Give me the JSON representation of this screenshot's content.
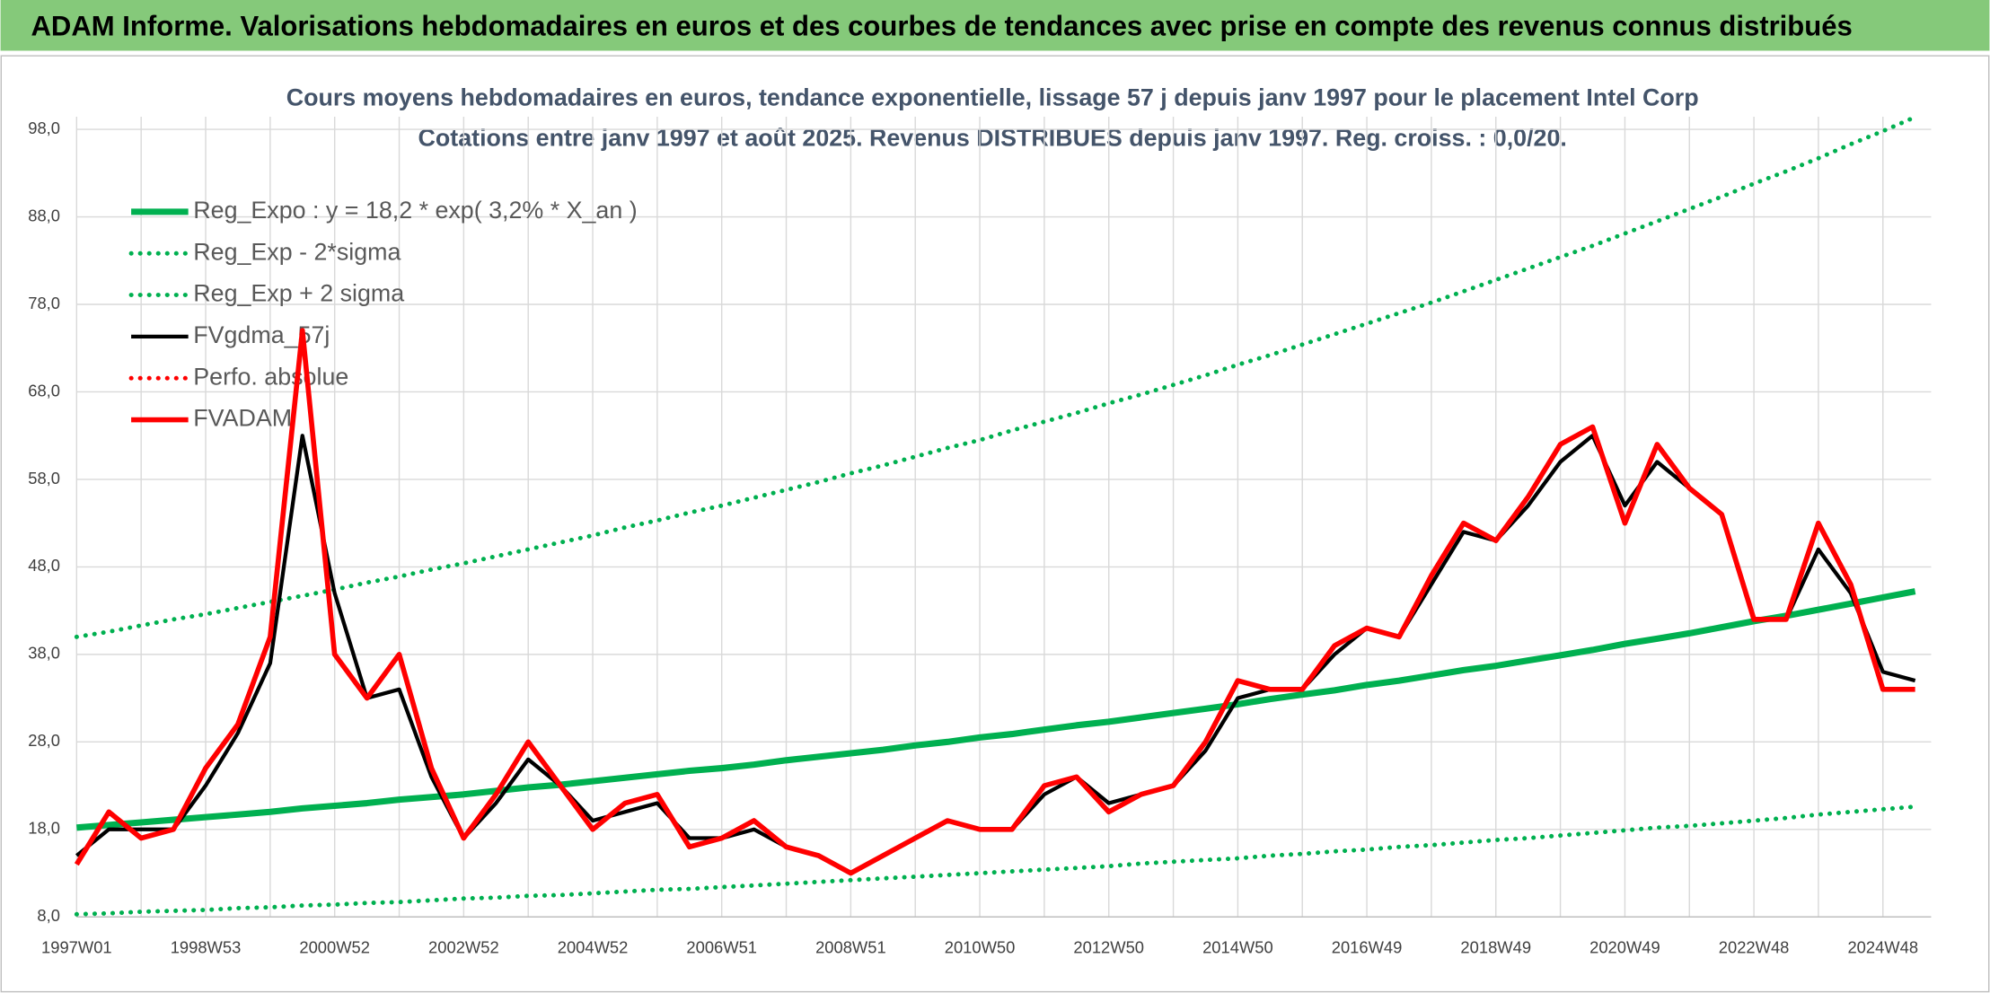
{
  "header": {
    "title": "ADAM Informe. Valorisations hebdomadaires en euros et des courbes de tendances avec prise en compte des revenus connus distribués"
  },
  "chart_data": {
    "type": "line",
    "title": "Cours moyens hebdomadaires en euros, tendance exponentielle, lissage 57 j depuis janv 1997 pour le placement Intel Corp",
    "subtitle": "Cotations entre janv 1997 et août 2025. Revenus DISTRIBUES depuis janv 1997. Reg. croiss. : 0,0/20.",
    "categories": [
      "1997W01",
      null,
      null,
      null,
      "1998W53",
      null,
      null,
      null,
      "2000W52",
      null,
      null,
      null,
      "2002W52",
      null,
      null,
      null,
      "2004W52",
      null,
      null,
      null,
      "2006W51",
      null,
      null,
      null,
      "2008W51",
      null,
      null,
      null,
      "2010W50",
      null,
      null,
      null,
      "2012W50",
      null,
      null,
      null,
      "2014W50",
      null,
      null,
      null,
      "2016W49",
      null,
      null,
      null,
      "2018W49",
      null,
      null,
      null,
      "2020W49",
      null,
      null,
      null,
      "2022W48",
      null,
      null,
      null,
      "2024W48",
      null
    ],
    "ylim": [
      8,
      98
    ],
    "yticks": [
      {
        "value": 8,
        "label": "8,0"
      },
      {
        "value": 18,
        "label": "18,0"
      },
      {
        "value": 28,
        "label": "28,0"
      },
      {
        "value": 38,
        "label": "38,0"
      },
      {
        "value": 48,
        "label": "48,0"
      },
      {
        "value": 58,
        "label": "58,0"
      },
      {
        "value": 68,
        "label": "68,0"
      },
      {
        "value": 78,
        "label": "78,0"
      },
      {
        "value": 88,
        "label": "88,0"
      },
      {
        "value": 98,
        "label": "98,0"
      }
    ],
    "grid": true,
    "legend": "top-left",
    "series": [
      {
        "name": "Reg_Expo : y = 18,2 * exp( 3,2% *  X_an )",
        "color": "#00b050",
        "style": "solid",
        "values": [
          18.2,
          18.5,
          18.8,
          19.1,
          19.4,
          19.7,
          20.0,
          20.4,
          20.7,
          21.0,
          21.4,
          21.7,
          22.0,
          22.4,
          22.8,
          23.1,
          23.5,
          23.9,
          24.3,
          24.7,
          25.0,
          25.4,
          25.9,
          26.3,
          26.7,
          27.1,
          27.6,
          28.0,
          28.5,
          28.9,
          29.4,
          29.9,
          30.3,
          30.8,
          31.3,
          31.8,
          32.3,
          32.9,
          33.4,
          33.9,
          34.5,
          35.0,
          35.6,
          36.2,
          36.7,
          37.3,
          37.9,
          38.5,
          39.2,
          39.8,
          40.4,
          41.1,
          41.8,
          42.4,
          43.1,
          43.8,
          44.5,
          45.2
        ]
      },
      {
        "name": "Reg_Exp - 2*sigma",
        "color": "#00b050",
        "style": "dotted",
        "values": [
          8.3,
          8.4,
          8.6,
          8.7,
          8.8,
          9.0,
          9.1,
          9.3,
          9.4,
          9.6,
          9.7,
          9.9,
          10.1,
          10.2,
          10.4,
          10.5,
          10.7,
          10.9,
          11.1,
          11.2,
          11.4,
          11.6,
          11.8,
          12.0,
          12.2,
          12.4,
          12.6,
          12.8,
          13.0,
          13.2,
          13.4,
          13.6,
          13.8,
          14.1,
          14.3,
          14.5,
          14.7,
          15.0,
          15.2,
          15.5,
          15.7,
          16.0,
          16.2,
          16.5,
          16.8,
          17.0,
          17.3,
          17.6,
          17.9,
          18.2,
          18.4,
          18.7,
          19.0,
          19.3,
          19.7,
          20.0,
          20.3,
          20.6
        ]
      },
      {
        "name": "Reg_Exp + 2 sigma",
        "color": "#00b050",
        "style": "dotted",
        "values": [
          40.0,
          40.6,
          41.3,
          42.0,
          42.6,
          43.3,
          44.0,
          44.7,
          45.4,
          46.2,
          46.9,
          47.7,
          48.4,
          49.2,
          50.0,
          50.8,
          51.6,
          52.5,
          53.3,
          54.2,
          55.0,
          55.9,
          56.8,
          57.7,
          58.7,
          59.6,
          60.6,
          61.6,
          62.5,
          63.6,
          64.6,
          65.6,
          66.7,
          67.7,
          68.8,
          69.9,
          71.1,
          72.2,
          73.4,
          74.6,
          75.8,
          77.0,
          78.2,
          79.5,
          80.8,
          82.1,
          83.4,
          84.7,
          86.1,
          87.5,
          88.9,
          90.3,
          91.8,
          93.2,
          94.7,
          96.3,
          97.8,
          99.4
        ]
      },
      {
        "name": "FVgdma_57j",
        "color": "#000000",
        "style": "solid",
        "values": [
          15,
          18,
          18,
          18,
          23,
          29,
          37,
          63,
          45,
          33,
          34,
          24,
          17,
          21,
          26,
          23,
          19,
          20,
          21,
          17,
          17,
          18,
          16,
          15,
          13,
          15,
          17,
          19,
          18,
          18,
          22,
          24,
          21,
          22,
          23,
          27,
          33,
          34,
          34,
          38,
          41,
          40,
          46,
          52,
          51,
          55,
          60,
          63,
          55,
          60,
          57,
          54,
          42,
          42,
          50,
          45,
          36,
          35
        ]
      },
      {
        "name": "Perfo. absolue",
        "color": "#ff0000",
        "style": "dotted",
        "values": [
          null,
          null,
          null,
          null,
          null,
          null,
          null,
          null,
          null,
          null,
          null,
          null,
          null,
          null,
          null,
          null,
          null,
          null,
          null,
          null,
          null,
          null,
          null,
          null,
          null,
          null,
          null,
          null,
          null,
          null,
          null,
          null,
          null,
          null,
          null,
          null,
          null,
          null,
          null,
          null,
          null,
          null,
          null,
          null,
          null,
          null,
          null,
          null,
          null,
          null,
          null,
          null,
          null,
          null,
          null,
          null,
          null,
          null
        ]
      },
      {
        "name": "FVADAM",
        "color": "#ff0000",
        "style": "solid",
        "values": [
          14,
          20,
          17,
          18,
          25,
          30,
          40,
          75,
          38,
          33,
          38,
          25,
          17,
          22,
          28,
          23,
          18,
          21,
          22,
          16,
          17,
          19,
          16,
          15,
          13,
          15,
          17,
          19,
          18,
          18,
          23,
          24,
          20,
          22,
          23,
          28,
          35,
          34,
          34,
          39,
          41,
          40,
          47,
          53,
          51,
          56,
          62,
          64,
          53,
          62,
          57,
          54,
          42,
          42,
          53,
          46,
          34,
          34
        ]
      }
    ]
  }
}
